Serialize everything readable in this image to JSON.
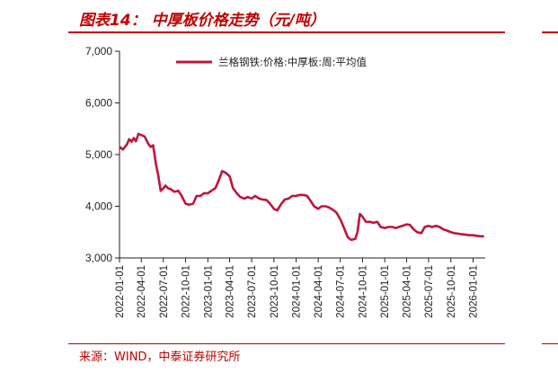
{
  "header": {
    "figure_title": "图表14：  中厚板价格走势（元/吨）"
  },
  "footer": {
    "source": "来源：WIND，中泰证券研究所"
  },
  "colors": {
    "accent": "#c00000",
    "series_line": "#c0143c",
    "axis": "#222222"
  },
  "chart_data": {
    "type": "line",
    "title": "",
    "xlabel": "",
    "ylabel": "",
    "ylim": [
      3000,
      7000
    ],
    "yticks": [
      "3,000",
      "4,000",
      "5,000",
      "6,000",
      "7,000"
    ],
    "ytick_values": [
      3000,
      4000,
      5000,
      6000,
      7000
    ],
    "xticks": [
      "2022-01-01",
      "2022-04-01",
      "2022-07-01",
      "2022-10-01",
      "2023-01-01",
      "2023-04-01",
      "2023-07-01",
      "2023-10-01",
      "2024-01-01",
      "2024-04-01",
      "2024-07-01",
      "2024-10-01",
      "2025-01-01",
      "2025-04-01",
      "2025-07-01",
      "2025-10-01",
      "2026-01-01"
    ],
    "xlim": [
      "2022-01-01",
      "2026-02-20"
    ],
    "grid": false,
    "legend_position": "top",
    "series": [
      {
        "name": "兰格钢铁:价格:中厚板:周:平均值",
        "points": [
          [
            "2022-01-01",
            5150
          ],
          [
            "2022-01-15",
            5100
          ],
          [
            "2022-02-01",
            5200
          ],
          [
            "2022-02-10",
            5300
          ],
          [
            "2022-02-20",
            5250
          ],
          [
            "2022-03-01",
            5320
          ],
          [
            "2022-03-10",
            5260
          ],
          [
            "2022-03-20",
            5400
          ],
          [
            "2022-04-01",
            5380
          ],
          [
            "2022-04-15",
            5350
          ],
          [
            "2022-05-01",
            5200
          ],
          [
            "2022-05-10",
            5150
          ],
          [
            "2022-05-20",
            5180
          ],
          [
            "2022-06-01",
            4800
          ],
          [
            "2022-06-10",
            4600
          ],
          [
            "2022-06-20",
            4300
          ],
          [
            "2022-07-01",
            4350
          ],
          [
            "2022-07-10",
            4400
          ],
          [
            "2022-07-20",
            4350
          ],
          [
            "2022-08-01",
            4330
          ],
          [
            "2022-08-15",
            4280
          ],
          [
            "2022-09-01",
            4300
          ],
          [
            "2022-09-15",
            4200
          ],
          [
            "2022-10-01",
            4050
          ],
          [
            "2022-10-15",
            4030
          ],
          [
            "2022-11-01",
            4050
          ],
          [
            "2022-11-15",
            4200
          ],
          [
            "2022-12-01",
            4200
          ],
          [
            "2022-12-15",
            4250
          ],
          [
            "2023-01-01",
            4250
          ],
          [
            "2023-01-15",
            4300
          ],
          [
            "2023-02-01",
            4350
          ],
          [
            "2023-02-15",
            4500
          ],
          [
            "2023-03-01",
            4680
          ],
          [
            "2023-03-15",
            4650
          ],
          [
            "2023-04-01",
            4580
          ],
          [
            "2023-04-15",
            4350
          ],
          [
            "2023-05-01",
            4250
          ],
          [
            "2023-05-15",
            4180
          ],
          [
            "2023-06-01",
            4150
          ],
          [
            "2023-06-15",
            4180
          ],
          [
            "2023-07-01",
            4150
          ],
          [
            "2023-07-15",
            4200
          ],
          [
            "2023-08-01",
            4150
          ],
          [
            "2023-08-15",
            4130
          ],
          [
            "2023-09-01",
            4120
          ],
          [
            "2023-09-15",
            4050
          ],
          [
            "2023-10-01",
            3950
          ],
          [
            "2023-10-15",
            3920
          ],
          [
            "2023-11-01",
            4050
          ],
          [
            "2023-11-15",
            4130
          ],
          [
            "2023-12-01",
            4150
          ],
          [
            "2023-12-15",
            4200
          ],
          [
            "2024-01-01",
            4200
          ],
          [
            "2024-01-15",
            4220
          ],
          [
            "2024-02-01",
            4220
          ],
          [
            "2024-02-15",
            4200
          ],
          [
            "2024-03-01",
            4100
          ],
          [
            "2024-03-15",
            4000
          ],
          [
            "2024-04-01",
            3950
          ],
          [
            "2024-04-15",
            4000
          ],
          [
            "2024-05-01",
            4000
          ],
          [
            "2024-05-15",
            3980
          ],
          [
            "2024-06-01",
            3930
          ],
          [
            "2024-06-15",
            3880
          ],
          [
            "2024-07-01",
            3750
          ],
          [
            "2024-07-15",
            3600
          ],
          [
            "2024-08-01",
            3400
          ],
          [
            "2024-08-15",
            3350
          ],
          [
            "2024-09-01",
            3370
          ],
          [
            "2024-09-10",
            3500
          ],
          [
            "2024-09-20",
            3850
          ],
          [
            "2024-10-01",
            3800
          ],
          [
            "2024-10-15",
            3700
          ],
          [
            "2024-11-01",
            3700
          ],
          [
            "2024-11-15",
            3680
          ],
          [
            "2024-12-01",
            3700
          ],
          [
            "2024-12-15",
            3600
          ],
          [
            "2025-01-01",
            3580
          ],
          [
            "2025-01-15",
            3600
          ],
          [
            "2025-02-01",
            3600
          ],
          [
            "2025-02-15",
            3580
          ],
          [
            "2025-03-01",
            3600
          ],
          [
            "2025-03-15",
            3620
          ],
          [
            "2025-04-01",
            3650
          ],
          [
            "2025-04-15",
            3640
          ],
          [
            "2025-05-01",
            3550
          ],
          [
            "2025-05-15",
            3500
          ],
          [
            "2025-06-01",
            3480
          ],
          [
            "2025-06-15",
            3600
          ],
          [
            "2025-07-01",
            3620
          ],
          [
            "2025-07-15",
            3600
          ],
          [
            "2025-08-01",
            3620
          ],
          [
            "2025-08-15",
            3600
          ],
          [
            "2025-09-01",
            3550
          ],
          [
            "2025-09-15",
            3530
          ],
          [
            "2025-10-01",
            3500
          ],
          [
            "2025-10-15",
            3480
          ],
          [
            "2025-11-01",
            3470
          ],
          [
            "2025-11-15",
            3460
          ],
          [
            "2025-12-01",
            3450
          ],
          [
            "2025-12-15",
            3440
          ],
          [
            "2026-01-01",
            3440
          ],
          [
            "2026-01-15",
            3430
          ],
          [
            "2026-02-01",
            3420
          ],
          [
            "2026-02-15",
            3420
          ]
        ]
      }
    ]
  }
}
